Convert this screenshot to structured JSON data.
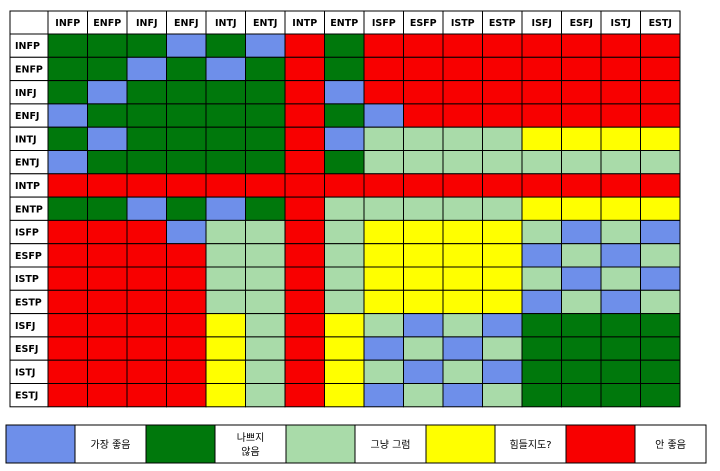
{
  "chart_data": {
    "type": "heatmap",
    "title": "",
    "xlabel": "",
    "ylabel": "",
    "x": [
      "INFP",
      "ENFP",
      "INFJ",
      "ENFJ",
      "INTJ",
      "ENTJ",
      "INTP",
      "ENTP",
      "ISFP",
      "ESFP",
      "ISTP",
      "ESTP",
      "ISFJ",
      "ESFJ",
      "ISTJ",
      "ESTJ"
    ],
    "y": [
      "INFP",
      "ENFP",
      "INFJ",
      "ENFJ",
      "INTJ",
      "ENTJ",
      "INTP",
      "ENTP",
      "ISFP",
      "ESFP",
      "ISTP",
      "ESTP",
      "ISFJ",
      "ESFJ",
      "ISTJ",
      "ESTJ"
    ],
    "categories": [
      {
        "key": "B",
        "label": "가장 좋음",
        "color": "#6E8FEA"
      },
      {
        "key": "G",
        "label": "나쁘지\n않음",
        "color": "#00780C"
      },
      {
        "key": "L",
        "label": "그냥 그럼",
        "color": "#A9DBA9"
      },
      {
        "key": "Y",
        "label": "힘들지도?",
        "color": "#FFFF00"
      },
      {
        "key": "R",
        "label": "안 좋음",
        "color": "#F80000"
      }
    ],
    "values": [
      [
        "G",
        "G",
        "G",
        "B",
        "G",
        "B",
        "R",
        "G",
        "R",
        "R",
        "R",
        "R",
        "R",
        "R",
        "R",
        "R"
      ],
      [
        "G",
        "G",
        "B",
        "G",
        "B",
        "G",
        "R",
        "G",
        "R",
        "R",
        "R",
        "R",
        "R",
        "R",
        "R",
        "R"
      ],
      [
        "G",
        "B",
        "G",
        "G",
        "G",
        "G",
        "R",
        "B",
        "R",
        "R",
        "R",
        "R",
        "R",
        "R",
        "R",
        "R"
      ],
      [
        "B",
        "G",
        "G",
        "G",
        "G",
        "G",
        "R",
        "G",
        "B",
        "R",
        "R",
        "R",
        "R",
        "R",
        "R",
        "R"
      ],
      [
        "G",
        "B",
        "G",
        "G",
        "G",
        "G",
        "R",
        "B",
        "L",
        "L",
        "L",
        "L",
        "Y",
        "Y",
        "Y",
        "Y"
      ],
      [
        "B",
        "G",
        "G",
        "G",
        "G",
        "G",
        "R",
        "G",
        "L",
        "L",
        "L",
        "L",
        "L",
        "L",
        "L",
        "L"
      ],
      [
        "R",
        "R",
        "R",
        "R",
        "R",
        "R",
        "R",
        "R",
        "R",
        "R",
        "R",
        "R",
        "R",
        "R",
        "R",
        "R"
      ],
      [
        "G",
        "G",
        "B",
        "G",
        "B",
        "G",
        "R",
        "L",
        "L",
        "L",
        "L",
        "L",
        "Y",
        "Y",
        "Y",
        "Y"
      ],
      [
        "R",
        "R",
        "R",
        "B",
        "L",
        "L",
        "R",
        "L",
        "Y",
        "Y",
        "Y",
        "Y",
        "L",
        "B",
        "L",
        "B"
      ],
      [
        "R",
        "R",
        "R",
        "R",
        "L",
        "L",
        "R",
        "L",
        "Y",
        "Y",
        "Y",
        "Y",
        "B",
        "L",
        "B",
        "L"
      ],
      [
        "R",
        "R",
        "R",
        "R",
        "L",
        "L",
        "R",
        "L",
        "Y",
        "Y",
        "Y",
        "Y",
        "L",
        "B",
        "L",
        "B"
      ],
      [
        "R",
        "R",
        "R",
        "R",
        "L",
        "L",
        "R",
        "L",
        "Y",
        "Y",
        "Y",
        "Y",
        "B",
        "L",
        "B",
        "L"
      ],
      [
        "R",
        "R",
        "R",
        "R",
        "Y",
        "L",
        "R",
        "Y",
        "L",
        "B",
        "L",
        "B",
        "G",
        "G",
        "G",
        "G"
      ],
      [
        "R",
        "R",
        "R",
        "R",
        "Y",
        "L",
        "R",
        "Y",
        "B",
        "L",
        "B",
        "L",
        "G",
        "G",
        "G",
        "G"
      ],
      [
        "R",
        "R",
        "R",
        "R",
        "Y",
        "L",
        "R",
        "Y",
        "L",
        "B",
        "L",
        "B",
        "G",
        "G",
        "G",
        "G"
      ],
      [
        "R",
        "R",
        "R",
        "R",
        "Y",
        "L",
        "R",
        "Y",
        "B",
        "L",
        "B",
        "L",
        "G",
        "G",
        "G",
        "G"
      ]
    ],
    "legend_placement": "bottom",
    "grid": true
  }
}
